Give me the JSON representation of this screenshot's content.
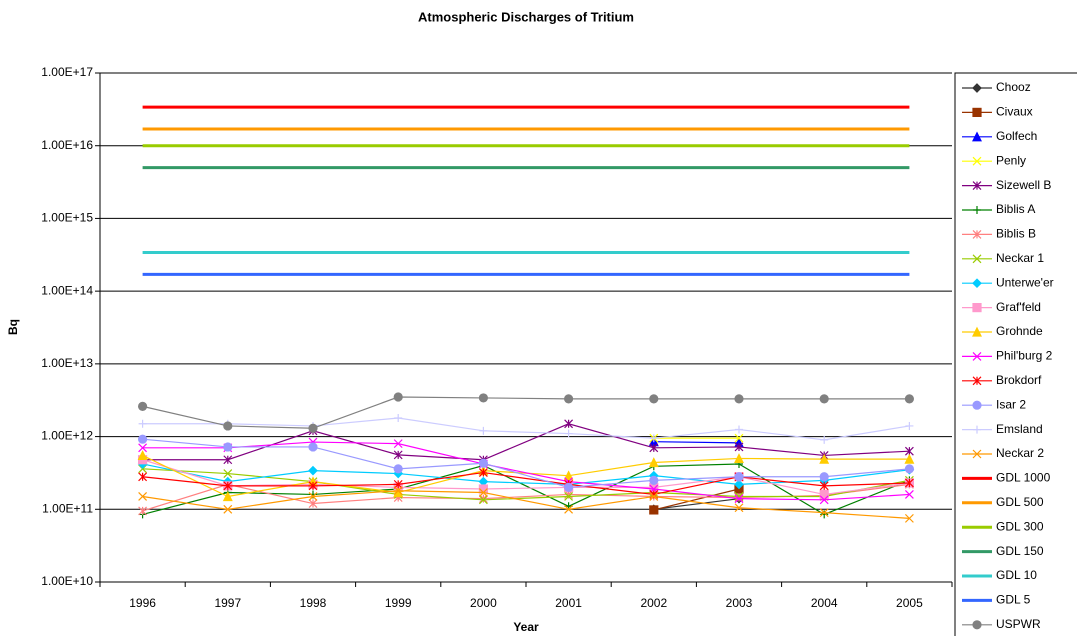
{
  "chart_data": {
    "type": "line",
    "title": "Atmospheric Discharges of Tritium",
    "x_label": "Year",
    "y_label": "Bq",
    "log_scale": true,
    "grid": true,
    "legend": "right",
    "categories": [
      "1996",
      "1997",
      "1998",
      "1999",
      "2000",
      "2001",
      "2002",
      "2003",
      "2004",
      "2005"
    ],
    "ylim": [
      10000000000.0,
      1e+17
    ],
    "yticks": [
      {
        "value": 10000000000.0,
        "label": "1.00E+10"
      },
      {
        "value": 100000000000.0,
        "label": "1.00E+11"
      },
      {
        "value": 1000000000000.0,
        "label": "1.00E+12"
      },
      {
        "value": 10000000000000.0,
        "label": "1.00E+13"
      },
      {
        "value": 100000000000000.0,
        "label": "1.00E+14"
      },
      {
        "value": 1000000000000000.0,
        "label": "1.00E+15"
      },
      {
        "value": 1e+16,
        "label": "1.00E+16"
      },
      {
        "value": 1e+17,
        "label": "1.00E+17"
      }
    ],
    "series": [
      {
        "name": "Chooz",
        "color": "#333333",
        "marker": "diamond",
        "values": [
          null,
          null,
          null,
          null,
          null,
          null,
          100000000000.0,
          140000000000.0,
          null,
          null
        ]
      },
      {
        "name": "Civaux",
        "color": "#993300",
        "marker": "square",
        "values": [
          null,
          null,
          null,
          null,
          null,
          null,
          98000000000.0,
          190000000000.0,
          null,
          null
        ]
      },
      {
        "name": "Golfech",
        "color": "#0000ff",
        "marker": "triangle",
        "values": [
          null,
          null,
          null,
          null,
          null,
          null,
          850000000000.0,
          820000000000.0,
          null,
          null
        ]
      },
      {
        "name": "Penly",
        "color": "#ffff00",
        "marker": "x",
        "values": [
          null,
          null,
          null,
          null,
          null,
          null,
          950000000000.0,
          950000000000.0,
          null,
          null
        ]
      },
      {
        "name": "Sizewell B",
        "color": "#800080",
        "marker": "star",
        "values": [
          480000000000.0,
          480000000000.0,
          1200000000000.0,
          560000000000.0,
          480000000000.0,
          1500000000000.0,
          700000000000.0,
          720000000000.0,
          550000000000.0,
          630000000000.0
        ]
      },
      {
        "name": "Biblis A",
        "color": "#008000",
        "marker": "plus",
        "values": [
          85000000000.0,
          170000000000.0,
          160000000000.0,
          190000000000.0,
          400000000000.0,
          110000000000.0,
          390000000000.0,
          420000000000.0,
          85000000000.0,
          250000000000.0
        ]
      },
      {
        "name": "Biblis B",
        "color": "#ff8080",
        "marker": "star",
        "values": [
          95000000000.0,
          220000000000.0,
          120000000000.0,
          145000000000.0,
          140000000000.0,
          160000000000.0,
          150000000000.0,
          145000000000.0,
          155000000000.0,
          220000000000.0
        ]
      },
      {
        "name": "Neckar 1",
        "color": "#99cc00",
        "marker": "x",
        "values": [
          360000000000.0,
          310000000000.0,
          240000000000.0,
          160000000000.0,
          135000000000.0,
          150000000000.0,
          170000000000.0,
          150000000000.0,
          150000000000.0,
          250000000000.0
        ]
      },
      {
        "name": "Unterwe'er",
        "color": "#00ccff",
        "marker": "diamond",
        "values": [
          420000000000.0,
          240000000000.0,
          340000000000.0,
          310000000000.0,
          240000000000.0,
          220000000000.0,
          290000000000.0,
          220000000000.0,
          250000000000.0,
          350000000000.0
        ]
      },
      {
        "name": "Graf'feld",
        "color": "#ff99cc",
        "marker": "square",
        "values": [
          480000000000.0,
          210000000000.0,
          220000000000.0,
          200000000000.0,
          190000000000.0,
          200000000000.0,
          200000000000.0,
          280000000000.0,
          160000000000.0,
          230000000000.0
        ]
      },
      {
        "name": "Grohnde",
        "color": "#ffcc00",
        "marker": "triangle",
        "values": [
          550000000000.0,
          150000000000.0,
          240000000000.0,
          170000000000.0,
          340000000000.0,
          290000000000.0,
          440000000000.0,
          500000000000.0,
          490000000000.0,
          490000000000.0
        ]
      },
      {
        "name": "Phil'burg 2",
        "color": "#ff00ff",
        "marker": "x",
        "values": [
          700000000000.0,
          700000000000.0,
          840000000000.0,
          800000000000.0,
          420000000000.0,
          240000000000.0,
          190000000000.0,
          140000000000.0,
          135000000000.0,
          160000000000.0
        ]
      },
      {
        "name": "Brokdorf",
        "color": "#ff0000",
        "marker": "star",
        "values": [
          280000000000.0,
          210000000000.0,
          210000000000.0,
          220000000000.0,
          320000000000.0,
          220000000000.0,
          160000000000.0,
          280000000000.0,
          210000000000.0,
          230000000000.0
        ]
      },
      {
        "name": "Isar 2",
        "color": "#9999ff",
        "marker": "circle",
        "values": [
          920000000000.0,
          720000000000.0,
          720000000000.0,
          360000000000.0,
          430000000000.0,
          200000000000.0,
          250000000000.0,
          280000000000.0,
          280000000000.0,
          360000000000.0
        ]
      },
      {
        "name": "Emsland",
        "color": "#ccccff",
        "marker": "plus",
        "values": [
          1500000000000.0,
          1500000000000.0,
          1400000000000.0,
          1800000000000.0,
          1200000000000.0,
          1100000000000.0,
          950000000000.0,
          1250000000000.0,
          900000000000.0,
          1400000000000.0
        ]
      },
      {
        "name": "Neckar 2",
        "color": "#ff9900",
        "marker": "x",
        "values": [
          150000000000.0,
          100000000000.0,
          150000000000.0,
          180000000000.0,
          170000000000.0,
          100000000000.0,
          150000000000.0,
          105000000000.0,
          90000000000.0,
          75000000000.0
        ]
      },
      {
        "name": "GDL 1000",
        "color": "#ff0000",
        "marker": "none",
        "values": [
          3.4e+16,
          3.4e+16,
          3.4e+16,
          3.4e+16,
          3.4e+16,
          3.4e+16,
          3.4e+16,
          3.4e+16,
          3.4e+16,
          3.4e+16
        ]
      },
      {
        "name": "GDL 500",
        "color": "#ff9900",
        "marker": "none",
        "values": [
          1.7e+16,
          1.7e+16,
          1.7e+16,
          1.7e+16,
          1.7e+16,
          1.7e+16,
          1.7e+16,
          1.7e+16,
          1.7e+16,
          1.7e+16
        ]
      },
      {
        "name": "GDL 300",
        "color": "#99cc00",
        "marker": "none",
        "values": [
          1e+16,
          1e+16,
          1e+16,
          1e+16,
          1e+16,
          1e+16,
          1e+16,
          1e+16,
          1e+16,
          1e+16
        ]
      },
      {
        "name": "GDL 150",
        "color": "#339966",
        "marker": "none",
        "values": [
          5000000000000000.0,
          5000000000000000.0,
          5000000000000000.0,
          5000000000000000.0,
          5000000000000000.0,
          5000000000000000.0,
          5000000000000000.0,
          5000000000000000.0,
          5000000000000000.0,
          5000000000000000.0
        ]
      },
      {
        "name": "GDL 10",
        "color": "#33cccc",
        "marker": "none",
        "values": [
          340000000000000.0,
          340000000000000.0,
          340000000000000.0,
          340000000000000.0,
          340000000000000.0,
          340000000000000.0,
          340000000000000.0,
          340000000000000.0,
          340000000000000.0,
          340000000000000.0
        ]
      },
      {
        "name": "GDL 5",
        "color": "#3366ff",
        "marker": "none",
        "values": [
          170000000000000.0,
          170000000000000.0,
          170000000000000.0,
          170000000000000.0,
          170000000000000.0,
          170000000000000.0,
          170000000000000.0,
          170000000000000.0,
          170000000000000.0,
          170000000000000.0
        ]
      },
      {
        "name": "USPWR",
        "color": "#808080",
        "marker": "circle",
        "values": [
          2600000000000.0,
          1400000000000.0,
          1300000000000.0,
          3500000000000.0,
          3400000000000.0,
          3300000000000.0,
          3300000000000.0,
          3300000000000.0,
          3300000000000.0,
          3300000000000.0
        ]
      }
    ]
  }
}
